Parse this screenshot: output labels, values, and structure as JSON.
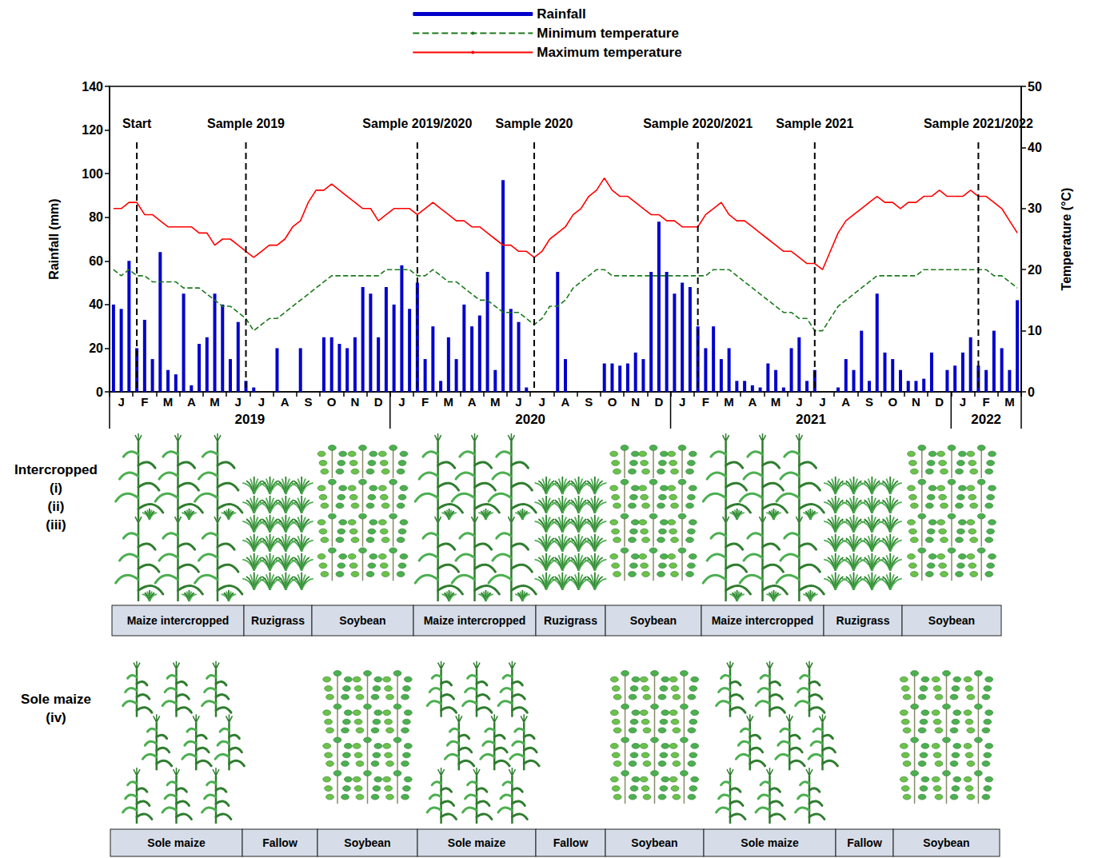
{
  "chart_data": {
    "type": "line",
    "categories": [
      null,
      "J",
      null,
      null,
      "F",
      null,
      null,
      "M",
      null,
      null,
      "A",
      null,
      null,
      "M",
      null,
      null,
      "J",
      null,
      null,
      "J",
      null,
      null,
      "A",
      null,
      null,
      "S",
      null,
      null,
      "O",
      null,
      null,
      "N",
      null,
      null,
      "D",
      null,
      null,
      "J",
      null,
      null,
      "F",
      null,
      null,
      "M",
      null,
      null,
      "A",
      null,
      null,
      "M",
      null,
      null,
      "J",
      null,
      null,
      "J",
      null,
      null,
      "A",
      null,
      null,
      "S",
      null,
      null,
      "O",
      null,
      null,
      "N",
      null,
      null,
      "D",
      null,
      null,
      "J",
      null,
      null,
      "F",
      null,
      null,
      "M",
      null,
      null,
      "A",
      null,
      null,
      "M",
      null,
      null,
      "J",
      null,
      null,
      "J",
      null,
      null,
      "A",
      null,
      null,
      "S",
      null,
      null,
      "O",
      null,
      null,
      "N",
      null,
      null,
      "D",
      null,
      null,
      "J",
      null,
      null,
      "F",
      null,
      null,
      "M",
      null
    ],
    "series": [
      {
        "name": "Rainfall",
        "type": "bar",
        "axis": "y",
        "color": "#0000cc",
        "values": [
          40,
          38,
          60,
          20,
          33,
          15,
          64,
          10,
          8,
          45,
          3,
          22,
          25,
          45,
          40,
          15,
          32,
          5,
          2,
          0,
          0,
          20,
          0,
          0,
          20,
          0,
          0,
          25,
          25,
          22,
          20,
          25,
          48,
          45,
          25,
          48,
          40,
          58,
          38,
          50,
          15,
          30,
          5,
          25,
          15,
          40,
          30,
          35,
          55,
          10,
          97,
          38,
          32,
          2,
          0,
          0,
          0,
          55,
          15,
          0,
          0,
          0,
          0,
          13,
          13,
          12,
          13,
          18,
          15,
          55,
          78,
          55,
          45,
          50,
          48,
          30,
          20,
          30,
          15,
          20,
          5,
          5,
          3,
          2,
          13,
          10,
          2,
          20,
          25,
          5,
          10,
          0,
          0,
          2,
          15,
          10,
          28,
          5,
          45,
          18,
          15,
          10,
          5,
          5,
          6,
          18,
          0,
          10,
          12,
          18,
          25,
          12,
          10,
          28,
          20,
          10,
          42
        ]
      },
      {
        "name": "Minimum temperature",
        "type": "line",
        "axis": "y2",
        "color": "#1a7a1a",
        "line_style": "dashed",
        "values": [
          20,
          19,
          20,
          19,
          19,
          18,
          18,
          18,
          18,
          17,
          17,
          17,
          16,
          15,
          14,
          14,
          13,
          12,
          10,
          11,
          12,
          12,
          13,
          14,
          15,
          16,
          17,
          18,
          19,
          19,
          19,
          19,
          19,
          19,
          19,
          20,
          20,
          20,
          20,
          19,
          19,
          20,
          19,
          18,
          18,
          17,
          16,
          15,
          15,
          14,
          13,
          13,
          13,
          12,
          11,
          12,
          14,
          14,
          15,
          17,
          18,
          19,
          20,
          20,
          19,
          19,
          19,
          19,
          19,
          19,
          19,
          19,
          19,
          19,
          19,
          19,
          19,
          20,
          20,
          20,
          19,
          18,
          17,
          16,
          15,
          14,
          13,
          13,
          12,
          12,
          10,
          10,
          12,
          14,
          15,
          16,
          17,
          18,
          19,
          19,
          19,
          19,
          19,
          19,
          20,
          20,
          20,
          20,
          20,
          20,
          20,
          20,
          20,
          19,
          19,
          18,
          17
        ]
      },
      {
        "name": "Maximum temperature",
        "type": "line",
        "axis": "y2",
        "color": "#ff0000",
        "line_style": "solid",
        "values": [
          30,
          30,
          31,
          31,
          29,
          29,
          28,
          27,
          27,
          27,
          27,
          26,
          26,
          24,
          25,
          25,
          24,
          23,
          22,
          23,
          24,
          24,
          25,
          27,
          28,
          31,
          33,
          33,
          34,
          33,
          32,
          31,
          30,
          30,
          28,
          29,
          30,
          30,
          30,
          29,
          30,
          31,
          30,
          29,
          28,
          28,
          27,
          27,
          26,
          25,
          24,
          24,
          23,
          23,
          22,
          23,
          25,
          26,
          27,
          29,
          30,
          32,
          33,
          35,
          33,
          32,
          32,
          31,
          30,
          29,
          29,
          28,
          28,
          27,
          27,
          27,
          29,
          30,
          31,
          29,
          28,
          28,
          27,
          26,
          25,
          24,
          23,
          23,
          22,
          21,
          21,
          20,
          23,
          26,
          28,
          29,
          30,
          31,
          32,
          31,
          31,
          30,
          31,
          31,
          32,
          32,
          33,
          32,
          32,
          32,
          33,
          32,
          32,
          31,
          30,
          28,
          26
        ]
      }
    ],
    "ylabel": "Rainfall (mm)",
    "y2label": "Temperature (°C)",
    "ylim": [
      0,
      140
    ],
    "yticks": [
      0,
      20,
      40,
      60,
      80,
      100,
      120,
      140
    ],
    "y2lim": [
      0,
      50
    ],
    "y2ticks": [
      0,
      10,
      20,
      30,
      40,
      50
    ],
    "years": [
      {
        "label": "2019",
        "first": 0,
        "last": 35
      },
      {
        "label": "2020",
        "first": 36,
        "last": 71
      },
      {
        "label": "2021",
        "first": 72,
        "last": 107
      },
      {
        "label": "2022",
        "first": 108,
        "last": 116
      }
    ],
    "annotations": [
      {
        "text": "Start",
        "at": 3
      },
      {
        "text": "Sample 2019",
        "at": 17
      },
      {
        "text": "Sample 2019/2020",
        "at": 39
      },
      {
        "text": "Sample 2020",
        "at": 54
      },
      {
        "text": "Sample 2020/2021",
        "at": 75
      },
      {
        "text": "Sample 2021",
        "at": 90
      },
      {
        "text": "Sample 2021/2022",
        "at": 111
      }
    ],
    "legend": "top",
    "grid": false
  },
  "crop_sequence": {
    "rows": [
      {
        "label": [
          "Intercropped",
          "(i)",
          "(ii)",
          "(iii)"
        ],
        "phases": [
          {
            "label": "Maize intercropped",
            "marker": "maize_grass"
          },
          {
            "label": "Ruzigrass",
            "marker": "grass"
          },
          {
            "label": "Soybean",
            "marker": "soybean"
          },
          {
            "label": "Maize intercropped",
            "marker": "maize_grass"
          },
          {
            "label": "Ruzigrass",
            "marker": "grass"
          },
          {
            "label": "Soybean",
            "marker": "soybean"
          },
          {
            "label": "Maize intercropped",
            "marker": "maize_grass"
          },
          {
            "label": "Ruzigrass",
            "marker": "grass"
          },
          {
            "label": "Soybean",
            "marker": "soybean"
          }
        ]
      },
      {
        "label": [
          "Sole maize",
          "(iv)"
        ],
        "phases": [
          {
            "label": "Sole maize",
            "marker": "maize"
          },
          {
            "label": "Fallow",
            "marker": "none"
          },
          {
            "label": "Soybean",
            "marker": "soybean"
          },
          {
            "label": "Sole maize",
            "marker": "maize"
          },
          {
            "label": "Fallow",
            "marker": "none"
          },
          {
            "label": "Soybean",
            "marker": "soybean"
          },
          {
            "label": "Sole maize",
            "marker": "maize"
          },
          {
            "label": "Fallow",
            "marker": "none"
          },
          {
            "label": "Soybean",
            "marker": "soybean"
          }
        ]
      }
    ]
  }
}
